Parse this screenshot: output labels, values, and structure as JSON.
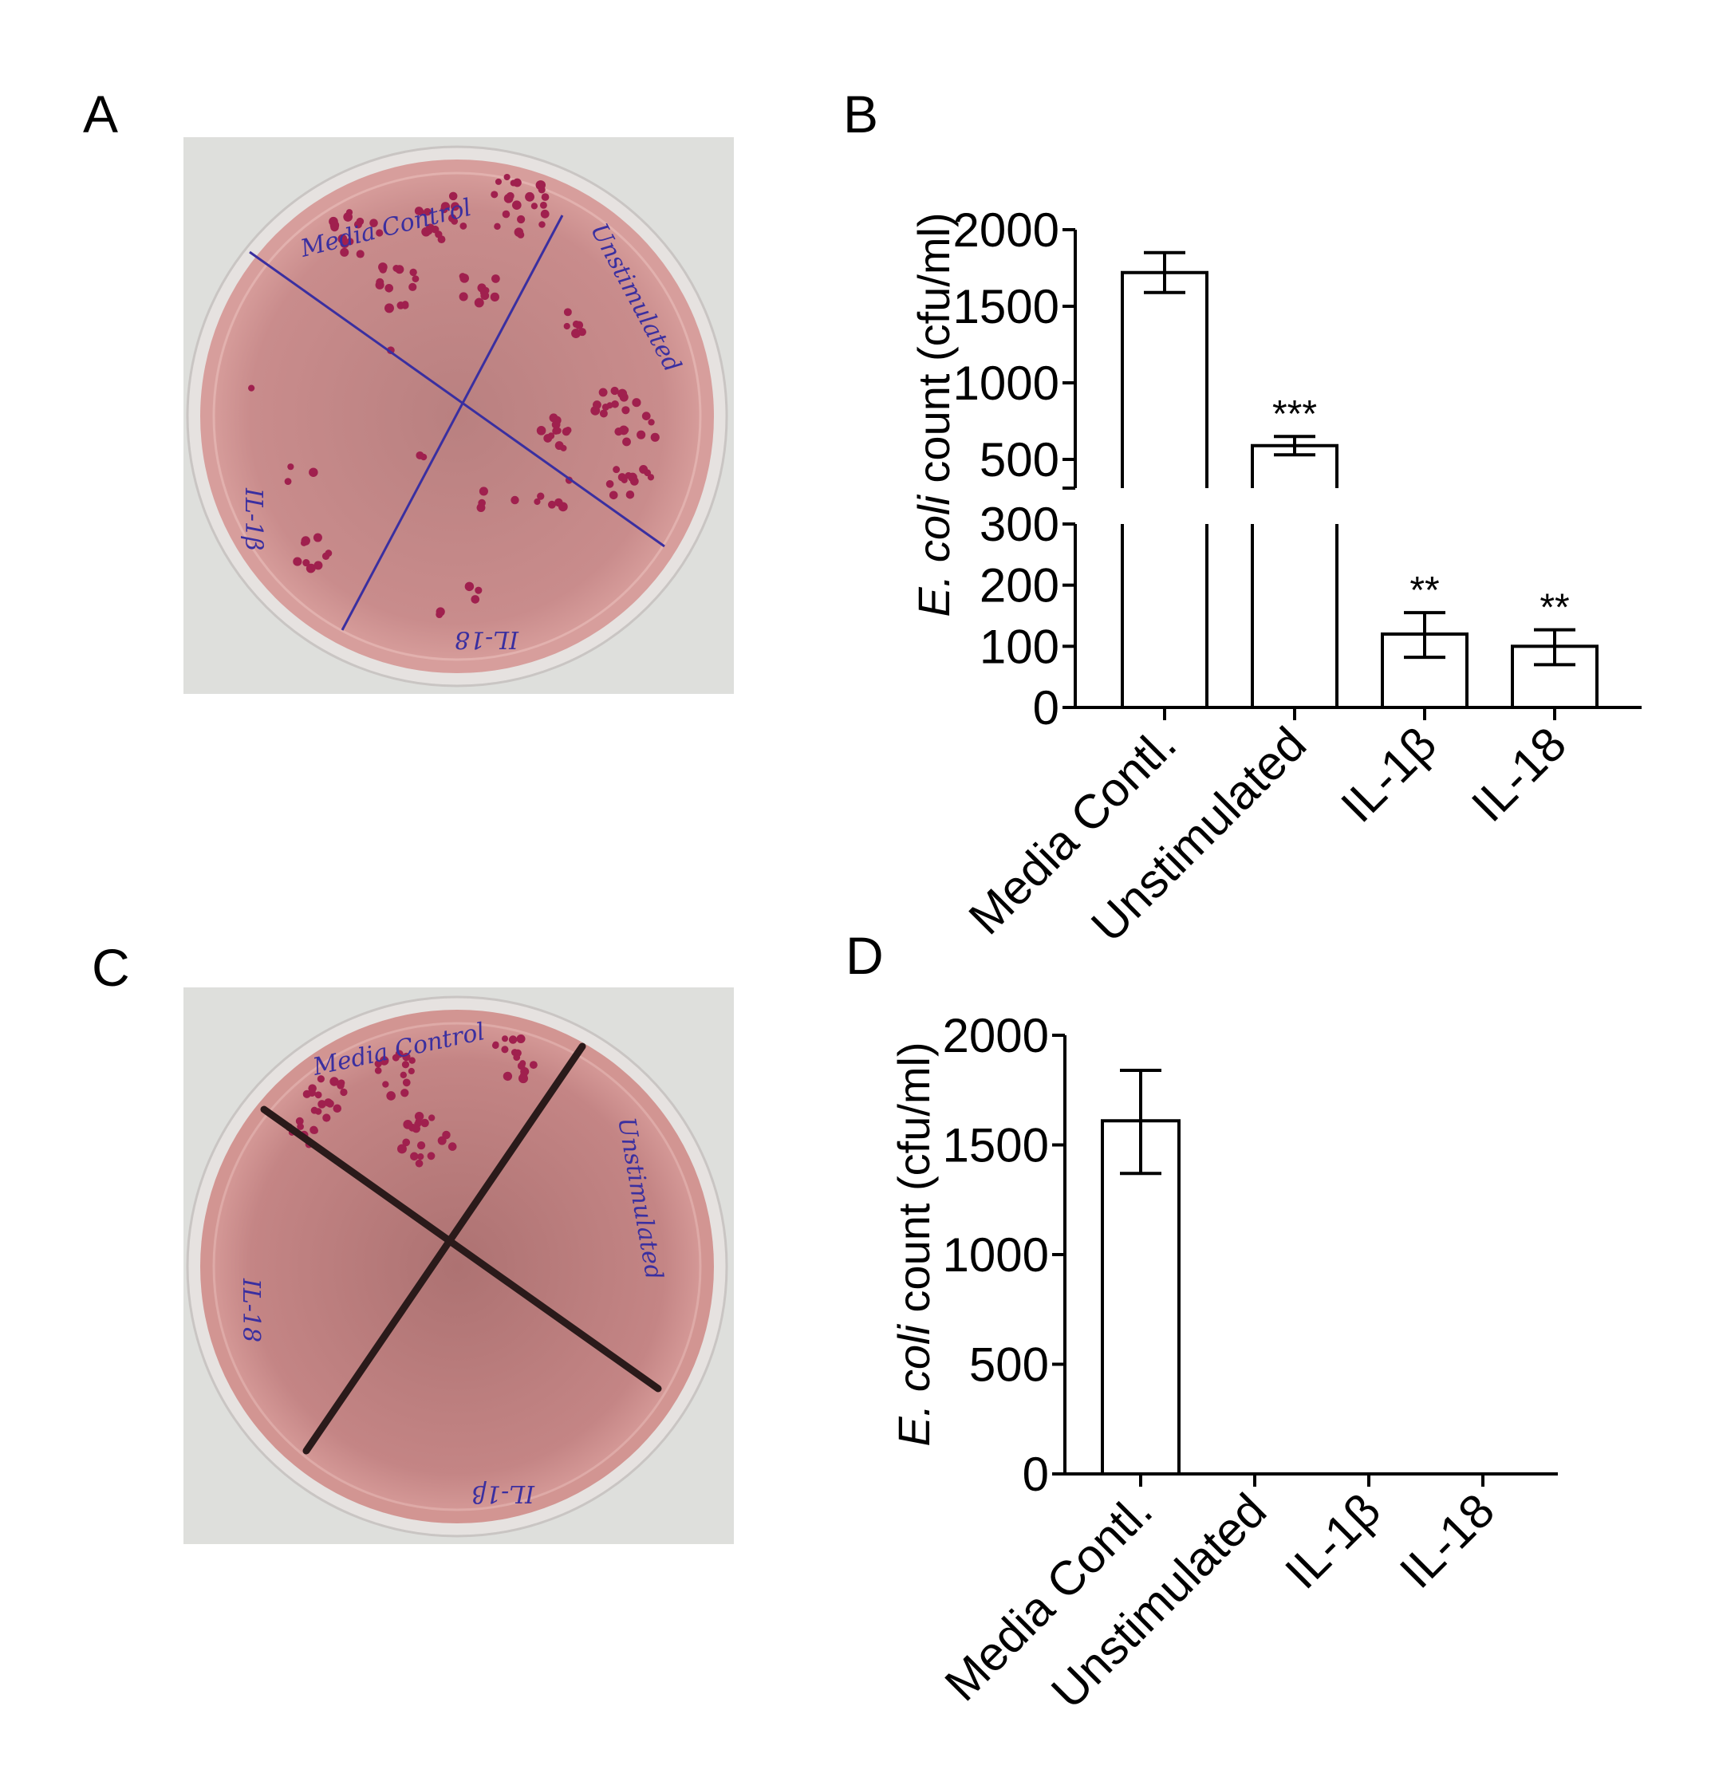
{
  "panels": {
    "a": {
      "letter": "A",
      "plate_labels": {
        "media": "Media Control",
        "unstim": "Unstimulated",
        "il1b": "IL-1β",
        "il18": "IL-18"
      }
    },
    "b": {
      "letter": "B"
    },
    "c": {
      "letter": "C",
      "plate_labels": {
        "media": "Media Control",
        "unstim": "Unstimulated",
        "il1b": "IL-1β",
        "il18": "IL-18"
      }
    },
    "d": {
      "letter": "D"
    }
  },
  "colors": {
    "agar": "#c98a8a",
    "colony": "#a0204e",
    "ink_blue": "#3a2fa0",
    "ink_black": "#2a1a1a",
    "bar_fill": "#ffffff",
    "axis": "#000000"
  },
  "chart_data": [
    {
      "panel": "B",
      "type": "bar",
      "ylabel_italic": "E. coli",
      "ylabel_rest": " count (cfu/ml)",
      "categories": [
        "Media Contl.",
        "Unstimulated",
        "IL-1β",
        "IL-18"
      ],
      "values": [
        1720,
        590,
        120,
        100
      ],
      "error_upper": [
        1850,
        650,
        155,
        127
      ],
      "error_lower": [
        1590,
        530,
        82,
        70
      ],
      "significance": [
        "",
        "***",
        "**",
        "**"
      ],
      "y_axis_break": true,
      "ylim_lower_segment": [
        0,
        300
      ],
      "ylim_upper_segment": [
        500,
        2000
      ],
      "yticks_lower": [
        "0",
        "100",
        "200",
        "300"
      ],
      "yticks_upper": [
        "500",
        "1000",
        "1500",
        "2000"
      ],
      "grid": false
    },
    {
      "panel": "D",
      "type": "bar",
      "ylabel_italic": "E. coli",
      "ylabel_rest": "  count (cfu/ml)",
      "categories": [
        "Media Contl.",
        "Unstimulated",
        "IL-1β",
        "IL-18"
      ],
      "values": [
        1610,
        0,
        0,
        0
      ],
      "error_upper": [
        1840,
        0,
        0,
        0
      ],
      "error_lower": [
        1370,
        0,
        0,
        0
      ],
      "ylim": [
        0,
        2000
      ],
      "yticks": [
        "0",
        "500",
        "1000",
        "1500",
        "2000"
      ],
      "grid": false
    }
  ]
}
